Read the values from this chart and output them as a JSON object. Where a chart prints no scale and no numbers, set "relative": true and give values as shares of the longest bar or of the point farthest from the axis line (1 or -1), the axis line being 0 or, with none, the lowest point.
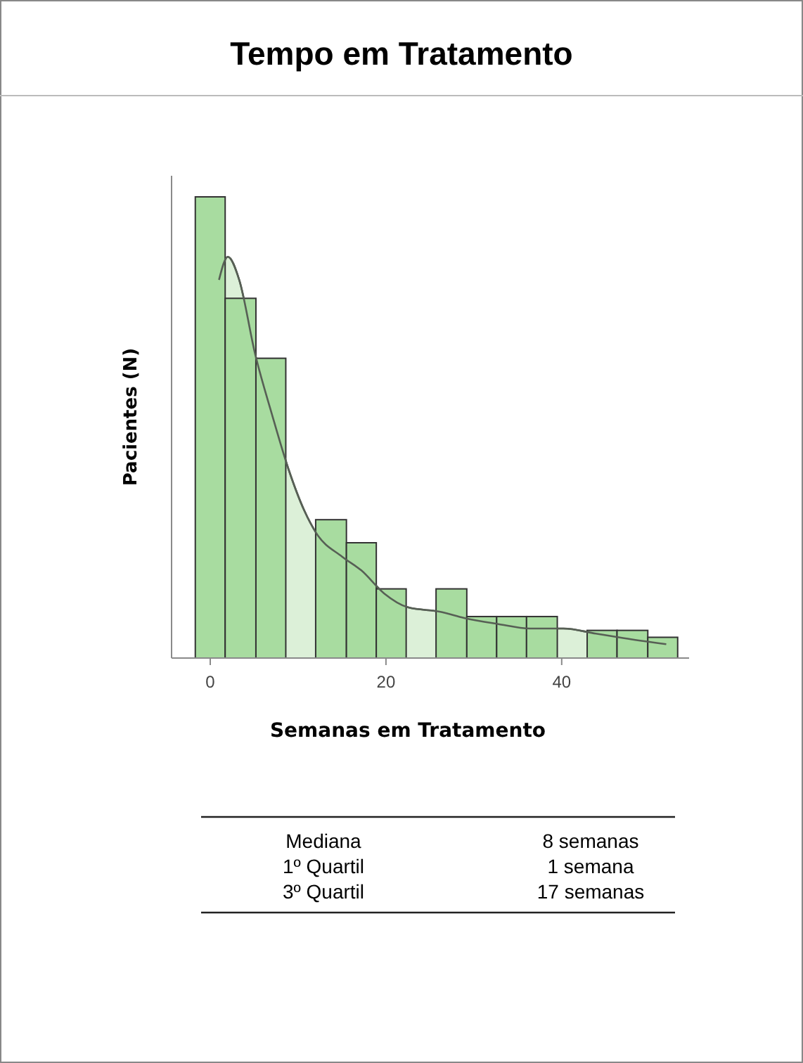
{
  "chart_data": {
    "type": "histogram",
    "title": "Tempo em Tratamento",
    "xlabel": "Semanas em Tratamento",
    "ylabel": "Pacientes (N)",
    "relative": true,
    "color": "#a8dca0",
    "bins": [
      -1.7,
      1.7,
      5.2,
      8.6,
      12.0,
      15.5,
      18.9,
      22.3,
      25.7,
      29.2,
      32.6,
      36.0,
      39.5,
      42.9,
      46.3,
      49.8,
      53.2
    ],
    "values": [
      1.0,
      0.78,
      0.65,
      0,
      0.3,
      0.25,
      0.15,
      0,
      0.15,
      0.09,
      0.09,
      0.09,
      0,
      0.06,
      0.06,
      0.045
    ],
    "series": [
      {
        "type": "area",
        "color": "#dcf0d8",
        "x": [
          1.0,
          2.0,
          3.3,
          5.1,
          7.0,
          8.9,
          10.7,
          12.1,
          15.0,
          17.2,
          19.8,
          22.5,
          26.3,
          28.9,
          32.7,
          36.4,
          40.2,
          43.9,
          47.1,
          51.9
        ],
        "values": [
          0.82,
          0.87,
          0.82,
          0.66,
          0.53,
          0.41,
          0.32,
          0.27,
          0.22,
          0.19,
          0.14,
          0.11,
          0.1,
          0.087,
          0.074,
          0.064,
          0.064,
          0.053,
          0.043,
          0.03
        ]
      }
    ],
    "xlim": [
      -4.4,
      54.5
    ],
    "xticks": [
      0,
      20,
      40
    ],
    "annotations": [
      "Mediana",
      "8 semanas",
      "1º Quartil",
      "1 semana",
      "3º Quartil",
      "17 semanas"
    ]
  }
}
